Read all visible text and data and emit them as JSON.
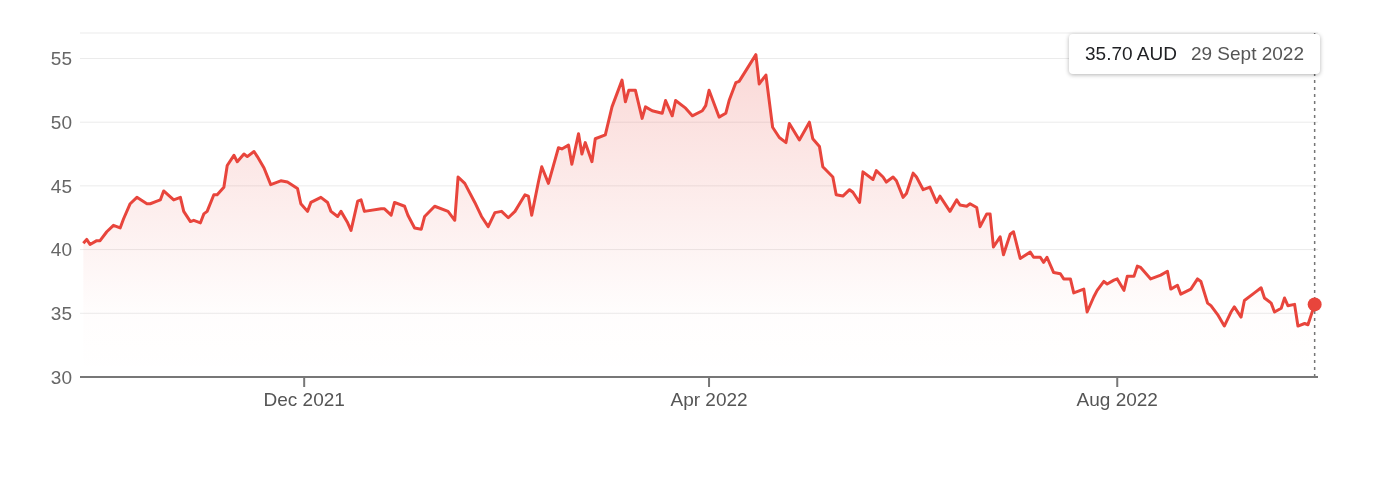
{
  "chart_data": {
    "type": "area",
    "x": [
      "2021-09-26",
      "2021-09-27",
      "2021-09-28",
      "2021-09-30",
      "2021-10-01",
      "2021-10-03",
      "2021-10-05",
      "2021-10-07",
      "2021-10-08",
      "2021-10-10",
      "2021-10-12",
      "2021-10-15",
      "2021-10-16",
      "2021-10-18",
      "2021-10-19",
      "2021-10-20",
      "2021-10-23",
      "2021-10-25",
      "2021-10-26",
      "2021-10-28",
      "2021-10-29",
      "2021-10-31",
      "2021-11-01",
      "2021-11-02",
      "2021-11-04",
      "2021-11-05",
      "2021-11-07",
      "2021-11-08",
      "2021-11-10",
      "2021-11-11",
      "2021-11-13",
      "2021-11-14",
      "2021-11-16",
      "2021-11-17",
      "2021-11-19",
      "2021-11-21",
      "2021-11-24",
      "2021-11-26",
      "2021-11-29",
      "2021-11-30",
      "2021-12-02",
      "2021-12-03",
      "2021-12-06",
      "2021-12-08",
      "2021-12-09",
      "2021-12-11",
      "2021-12-12",
      "2021-12-14",
      "2021-12-15",
      "2021-12-17",
      "2021-12-18",
      "2021-12-19",
      "2021-12-24",
      "2021-12-25",
      "2021-12-27",
      "2021-12-28",
      "2021-12-31",
      "2022-01-01",
      "2022-01-03",
      "2022-01-05",
      "2022-01-06",
      "2022-01-09",
      "2022-01-13",
      "2022-01-15",
      "2022-01-16",
      "2022-01-18",
      "2022-01-21",
      "2022-01-23",
      "2022-01-25",
      "2022-01-27",
      "2022-01-29",
      "2022-01-31",
      "2022-02-02",
      "2022-02-05",
      "2022-02-06",
      "2022-02-07",
      "2022-02-09",
      "2022-02-10",
      "2022-02-12",
      "2022-02-15",
      "2022-02-16",
      "2022-02-18",
      "2022-02-19",
      "2022-02-21",
      "2022-02-22",
      "2022-02-23",
      "2022-02-25",
      "2022-02-26",
      "2022-03-01",
      "2022-03-03",
      "2022-03-06",
      "2022-03-07",
      "2022-03-08",
      "2022-03-10",
      "2022-03-12",
      "2022-03-13",
      "2022-03-15",
      "2022-03-18",
      "2022-03-19",
      "2022-03-21",
      "2022-03-22",
      "2022-03-25",
      "2022-03-27",
      "2022-03-30",
      "2022-03-31",
      "2022-04-01",
      "2022-04-04",
      "2022-04-06",
      "2022-04-07",
      "2022-04-09",
      "2022-04-10",
      "2022-04-15",
      "2022-04-16",
      "2022-04-18",
      "2022-04-20",
      "2022-04-22",
      "2022-04-24",
      "2022-04-25",
      "2022-04-28",
      "2022-05-01",
      "2022-05-02",
      "2022-05-04",
      "2022-05-05",
      "2022-05-08",
      "2022-05-09",
      "2022-05-11",
      "2022-05-13",
      "2022-05-14",
      "2022-05-16",
      "2022-05-17",
      "2022-05-20",
      "2022-05-21",
      "2022-05-23",
      "2022-05-24",
      "2022-05-26",
      "2022-05-27",
      "2022-05-29",
      "2022-05-30",
      "2022-06-01",
      "2022-06-02",
      "2022-06-04",
      "2022-06-06",
      "2022-06-08",
      "2022-06-09",
      "2022-06-12",
      "2022-06-14",
      "2022-06-15",
      "2022-06-17",
      "2022-06-18",
      "2022-06-20",
      "2022-06-21",
      "2022-06-23",
      "2022-06-24",
      "2022-06-25",
      "2022-06-27",
      "2022-06-28",
      "2022-06-30",
      "2022-07-01",
      "2022-07-03",
      "2022-07-06",
      "2022-07-07",
      "2022-07-09",
      "2022-07-10",
      "2022-07-11",
      "2022-07-13",
      "2022-07-15",
      "2022-07-16",
      "2022-07-18",
      "2022-07-19",
      "2022-07-22",
      "2022-07-23",
      "2022-07-25",
      "2022-07-26",
      "2022-07-28",
      "2022-07-29",
      "2022-07-31",
      "2022-08-01",
      "2022-08-03",
      "2022-08-04",
      "2022-08-06",
      "2022-08-07",
      "2022-08-08",
      "2022-08-11",
      "2022-08-14",
      "2022-08-16",
      "2022-08-17",
      "2022-08-19",
      "2022-08-20",
      "2022-08-23",
      "2022-08-25",
      "2022-08-26",
      "2022-08-28",
      "2022-08-29",
      "2022-08-31",
      "2022-09-02",
      "2022-09-04",
      "2022-09-05",
      "2022-09-07",
      "2022-09-08",
      "2022-09-11",
      "2022-09-13",
      "2022-09-14",
      "2022-09-16",
      "2022-09-17",
      "2022-09-19",
      "2022-09-20",
      "2022-09-21",
      "2022-09-23",
      "2022-09-24",
      "2022-09-26",
      "2022-09-27",
      "2022-09-29"
    ],
    "series": [
      {
        "color": "#e8453c",
        "values": [
          40.5,
          40.8,
          40.4,
          40.7,
          40.7,
          41.4,
          41.9,
          41.7,
          42.4,
          43.6,
          44.1,
          43.6,
          43.6,
          43.8,
          43.9,
          44.6,
          43.9,
          44.1,
          43.0,
          42.2,
          42.3,
          42.1,
          42.8,
          43.0,
          44.3,
          44.3,
          44.9,
          46.6,
          47.4,
          46.9,
          47.5,
          47.3,
          47.7,
          47.3,
          46.4,
          45.1,
          45.4,
          45.3,
          44.8,
          43.6,
          43.0,
          43.7,
          44.1,
          43.7,
          43.0,
          42.6,
          43.0,
          42.1,
          41.5,
          43.8,
          43.9,
          43.0,
          43.2,
          43.2,
          42.7,
          43.7,
          43.4,
          42.7,
          41.7,
          41.6,
          42.6,
          43.4,
          43.0,
          42.3,
          45.7,
          45.2,
          43.7,
          42.6,
          41.8,
          42.9,
          43.0,
          42.5,
          43.0,
          44.3,
          44.2,
          42.7,
          45.3,
          46.5,
          45.2,
          48.0,
          47.9,
          48.2,
          46.7,
          49.1,
          47.5,
          48.4,
          46.9,
          48.7,
          49.0,
          51.2,
          53.3,
          51.6,
          52.5,
          52.5,
          50.3,
          51.2,
          50.9,
          50.7,
          51.7,
          50.5,
          51.7,
          51.1,
          50.5,
          50.9,
          51.3,
          52.5,
          50.4,
          50.7,
          51.7,
          53.1,
          53.2,
          55.3,
          53.0,
          53.7,
          49.6,
          48.8,
          48.4,
          49.9,
          48.6,
          50.0,
          48.7,
          48.1,
          46.5,
          45.7,
          44.3,
          44.2,
          44.7,
          44.5,
          43.7,
          46.1,
          45.5,
          46.2,
          45.7,
          45.3,
          45.7,
          45.4,
          44.1,
          44.4,
          46.0,
          45.7,
          44.7,
          44.9,
          43.7,
          44.2,
          43.0,
          43.9,
          43.5,
          43.4,
          43.6,
          43.3,
          41.8,
          42.8,
          42.8,
          40.2,
          41.0,
          39.6,
          41.2,
          41.4,
          39.3,
          39.8,
          39.4,
          39.4,
          39.0,
          39.4,
          38.2,
          38.1,
          37.7,
          37.7,
          36.6,
          36.9,
          35.1,
          36.3,
          36.8,
          37.5,
          37.3,
          37.6,
          37.7,
          36.8,
          37.9,
          37.9,
          38.7,
          38.6,
          37.7,
          38.0,
          38.3,
          36.9,
          37.2,
          36.5,
          36.9,
          37.7,
          37.5,
          35.8,
          35.6,
          34.9,
          34.0,
          35.1,
          35.5,
          34.7,
          36.0,
          36.6,
          37.0,
          36.2,
          35.8,
          35.1,
          35.4,
          36.2,
          35.6,
          35.7,
          34.0,
          34.2,
          34.1,
          35.7
        ]
      }
    ],
    "xlim": [
      "2021-09-25",
      "2022-09-30"
    ],
    "xticks": [
      {
        "value": "2021-12-01",
        "label": "Dec 2021"
      },
      {
        "value": "2022-04-01",
        "label": "Apr 2022"
      },
      {
        "value": "2022-08-01",
        "label": "Aug 2022"
      }
    ],
    "ylim": [
      30,
      57
    ],
    "yticks": [
      30,
      35,
      40,
      45,
      50,
      55
    ],
    "grid": "y",
    "legend": false,
    "marker": "none",
    "line_style": "solid",
    "ref_lines": [
      {
        "axis": "x",
        "value": "2022-09-29",
        "color": "#757575",
        "line_style": "dotted"
      }
    ],
    "annotations": [
      "35.70 AUD",
      "29 Sept 2022"
    ]
  }
}
